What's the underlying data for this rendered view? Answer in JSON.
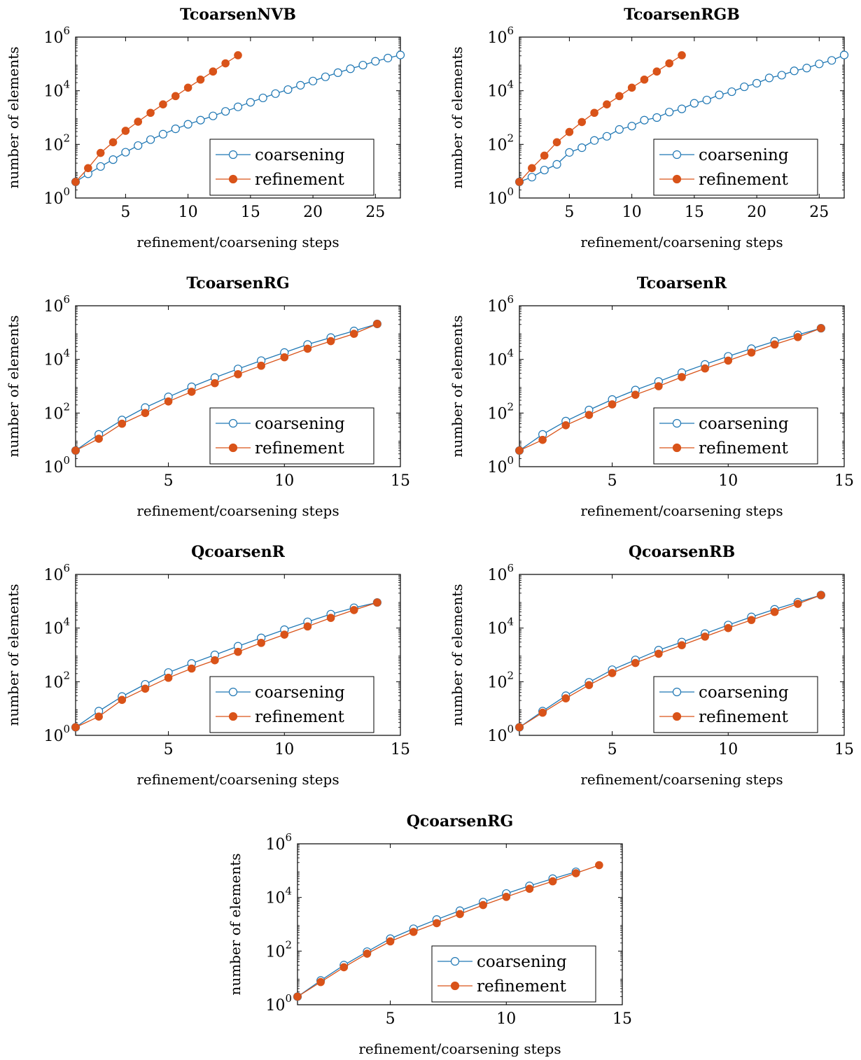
{
  "colors": {
    "coarsening": "#1f77b4",
    "refinement": "#d95319"
  },
  "chart_data": [
    {
      "type": "line",
      "title": "TcoarsenNVB",
      "xlabel": "refinement/coarsening steps",
      "ylabel": "number of elements",
      "y_scale": "log",
      "xlim": [
        1,
        27
      ],
      "ylim_exp": [
        0,
        6
      ],
      "xticks": [
        5,
        10,
        15,
        20,
        25
      ],
      "yticks": [
        {
          "base": "10",
          "exp": "0"
        },
        {
          "base": "10",
          "exp": "2"
        },
        {
          "base": "10",
          "exp": "4"
        },
        {
          "base": "10",
          "exp": "6"
        }
      ],
      "legend": "bottom-right",
      "series": [
        {
          "name": "coarsening",
          "marker": "open-circle",
          "x": [
            1,
            2,
            3,
            4,
            5,
            6,
            7,
            8,
            9,
            10,
            11,
            12,
            13,
            14,
            15,
            16,
            17,
            18,
            19,
            20,
            21,
            22,
            23,
            24,
            25,
            26,
            27
          ],
          "y": [
            4,
            8,
            15,
            27,
            51,
            90,
            150,
            240,
            380,
            560,
            800,
            1150,
            1700,
            2500,
            3700,
            5400,
            7800,
            11000,
            16000,
            23000,
            33000,
            47000,
            66000,
            90000,
            125000,
            165000,
            215000
          ]
        },
        {
          "name": "refinement",
          "marker": "filled-circle",
          "x": [
            1,
            2,
            3,
            4,
            5,
            6,
            7,
            8,
            9,
            10,
            11,
            12,
            13,
            14
          ],
          "y": [
            4,
            13,
            48,
            120,
            320,
            700,
            1500,
            3100,
            6300,
            13000,
            26000,
            52000,
            105000,
            210000
          ]
        }
      ]
    },
    {
      "type": "line",
      "title": "TcoarsenRGB",
      "xlabel": "refinement/coarsening steps",
      "ylabel": "number of elements",
      "y_scale": "log",
      "xlim": [
        1,
        27
      ],
      "ylim_exp": [
        0,
        6
      ],
      "xticks": [
        5,
        10,
        15,
        20,
        25
      ],
      "yticks": [
        {
          "base": "10",
          "exp": "0"
        },
        {
          "base": "10",
          "exp": "2"
        },
        {
          "base": "10",
          "exp": "4"
        },
        {
          "base": "10",
          "exp": "6"
        }
      ],
      "legend": "bottom-right",
      "series": [
        {
          "name": "coarsening",
          "marker": "open-circle",
          "x": [
            1,
            2,
            3,
            4,
            5,
            6,
            7,
            8,
            9,
            10,
            11,
            12,
            13,
            14,
            15,
            16,
            17,
            18,
            19,
            20,
            21,
            22,
            23,
            24,
            25,
            26,
            27
          ],
          "y": [
            4,
            6,
            11,
            18,
            50,
            75,
            140,
            200,
            360,
            480,
            800,
            1000,
            1600,
            2100,
            3400,
            4500,
            7000,
            9200,
            14000,
            19000,
            30000,
            38000,
            55000,
            70000,
            100000,
            135000,
            215000
          ]
        },
        {
          "name": "refinement",
          "marker": "filled-circle",
          "x": [
            1,
            2,
            3,
            4,
            5,
            6,
            7,
            8,
            9,
            10,
            11,
            12,
            13,
            14
          ],
          "y": [
            4,
            13,
            38,
            120,
            290,
            680,
            1500,
            3100,
            6300,
            13000,
            26000,
            52000,
            105000,
            210000
          ]
        }
      ]
    },
    {
      "type": "line",
      "title": "TcoarsenRG",
      "xlabel": "refinement/coarsening steps",
      "ylabel": "number of elements",
      "y_scale": "log",
      "xlim": [
        1,
        15
      ],
      "ylim_exp": [
        0,
        6
      ],
      "xticks": [
        5,
        10,
        15
      ],
      "yticks": [
        {
          "base": "10",
          "exp": "0"
        },
        {
          "base": "10",
          "exp": "2"
        },
        {
          "base": "10",
          "exp": "4"
        },
        {
          "base": "10",
          "exp": "6"
        }
      ],
      "legend": "bottom-right",
      "series": [
        {
          "name": "coarsening",
          "marker": "open-circle",
          "x": [
            1,
            2,
            3,
            4,
            5,
            6,
            7,
            8,
            9,
            10,
            11,
            12,
            13,
            14
          ],
          "y": [
            4,
            16,
            55,
            160,
            400,
            950,
            2100,
            4400,
            9000,
            18000,
            36000,
            65000,
            115000,
            210000
          ]
        },
        {
          "name": "refinement",
          "marker": "filled-circle",
          "x": [
            1,
            2,
            3,
            4,
            5,
            6,
            7,
            8,
            9,
            10,
            11,
            12,
            13,
            14
          ],
          "y": [
            4,
            11,
            40,
            100,
            270,
            620,
            1300,
            2800,
            5800,
            12000,
            25000,
            48000,
            90000,
            210000
          ]
        }
      ]
    },
    {
      "type": "line",
      "title": "TcoarsenR",
      "xlabel": "refinement/coarsening steps",
      "ylabel": "number of elements",
      "y_scale": "log",
      "xlim": [
        1,
        15
      ],
      "ylim_exp": [
        0,
        6
      ],
      "xticks": [
        5,
        10,
        15
      ],
      "yticks": [
        {
          "base": "10",
          "exp": "0"
        },
        {
          "base": "10",
          "exp": "2"
        },
        {
          "base": "10",
          "exp": "4"
        },
        {
          "base": "10",
          "exp": "6"
        }
      ],
      "legend": "bottom-right",
      "series": [
        {
          "name": "coarsening",
          "marker": "open-circle",
          "x": [
            1,
            2,
            3,
            4,
            5,
            6,
            7,
            8,
            9,
            10,
            11,
            12,
            13,
            14
          ],
          "y": [
            4,
            16,
            50,
            130,
            320,
            720,
            1500,
            3200,
            6500,
            13000,
            25000,
            47000,
            82000,
            145000
          ]
        },
        {
          "name": "refinement",
          "marker": "filled-circle",
          "x": [
            1,
            2,
            3,
            4,
            5,
            6,
            7,
            8,
            9,
            10,
            11,
            12,
            13,
            14
          ],
          "y": [
            4,
            10,
            35,
            85,
            210,
            480,
            1000,
            2200,
            4600,
            9000,
            18000,
            36000,
            68000,
            145000
          ]
        }
      ]
    },
    {
      "type": "line",
      "title": "QcoarsenR",
      "xlabel": "refinement/coarsening steps",
      "ylabel": "number of elements",
      "y_scale": "log",
      "xlim": [
        1,
        15
      ],
      "ylim_exp": [
        0,
        6
      ],
      "xticks": [
        5,
        10,
        15
      ],
      "yticks": [
        {
          "base": "10",
          "exp": "0"
        },
        {
          "base": "10",
          "exp": "2"
        },
        {
          "base": "10",
          "exp": "4"
        },
        {
          "base": "10",
          "exp": "6"
        }
      ],
      "legend": "bottom-right",
      "series": [
        {
          "name": "coarsening",
          "marker": "open-circle",
          "x": [
            1,
            2,
            3,
            4,
            5,
            6,
            7,
            8,
            9,
            10,
            11,
            12,
            13,
            14
          ],
          "y": [
            2,
            8,
            28,
            80,
            220,
            480,
            1000,
            2100,
            4300,
            8700,
            17000,
            33000,
            57000,
            90000
          ]
        },
        {
          "name": "refinement",
          "marker": "filled-circle",
          "x": [
            1,
            2,
            3,
            4,
            5,
            6,
            7,
            8,
            9,
            10,
            11,
            12,
            13,
            14
          ],
          "y": [
            2,
            5,
            21,
            55,
            140,
            310,
            630,
            1300,
            2800,
            5700,
            11500,
            24000,
            47000,
            90000
          ]
        }
      ]
    },
    {
      "type": "line",
      "title": "QcoarsenRB",
      "xlabel": "refinement/coarsening steps",
      "ylabel": "number of elements",
      "y_scale": "log",
      "xlim": [
        1,
        15
      ],
      "ylim_exp": [
        0,
        6
      ],
      "xticks": [
        5,
        10,
        15
      ],
      "yticks": [
        {
          "base": "10",
          "exp": "0"
        },
        {
          "base": "10",
          "exp": "2"
        },
        {
          "base": "10",
          "exp": "4"
        },
        {
          "base": "10",
          "exp": "6"
        }
      ],
      "legend": "bottom-right",
      "series": [
        {
          "name": "coarsening",
          "marker": "open-circle",
          "x": [
            1,
            2,
            3,
            4,
            5,
            6,
            7,
            8,
            9,
            10,
            11,
            12,
            13,
            14
          ],
          "y": [
            2,
            8,
            30,
            95,
            280,
            650,
            1500,
            3000,
            6200,
            13000,
            26000,
            50000,
            92000,
            170000
          ]
        },
        {
          "name": "refinement",
          "marker": "filled-circle",
          "x": [
            1,
            2,
            3,
            4,
            5,
            6,
            7,
            8,
            9,
            10,
            11,
            12,
            13,
            14
          ],
          "y": [
            2,
            7,
            24,
            75,
            210,
            500,
            1100,
            2300,
            4800,
            10000,
            20000,
            40000,
            80000,
            170000
          ]
        }
      ]
    },
    {
      "type": "line",
      "title": "QcoarsenRG",
      "xlabel": "refinement/coarsening steps",
      "ylabel": "number of elements",
      "y_scale": "log",
      "xlim": [
        1,
        15
      ],
      "ylim_exp": [
        0,
        6
      ],
      "xticks": [
        5,
        10,
        15
      ],
      "yticks": [
        {
          "base": "10",
          "exp": "0"
        },
        {
          "base": "10",
          "exp": "2"
        },
        {
          "base": "10",
          "exp": "4"
        },
        {
          "base": "10",
          "exp": "6"
        }
      ],
      "legend": "bottom-right",
      "series": [
        {
          "name": "coarsening",
          "marker": "open-circle",
          "x": [
            1,
            2,
            3,
            4,
            5,
            6,
            7,
            8,
            9,
            10,
            11,
            12,
            13
          ],
          "y": [
            2,
            8,
            30,
            95,
            290,
            680,
            1500,
            3200,
            6700,
            14000,
            27000,
            50000,
            90000
          ]
        },
        {
          "name": "refinement",
          "marker": "filled-circle",
          "x": [
            1,
            2,
            3,
            4,
            5,
            6,
            7,
            8,
            9,
            10,
            11,
            12,
            13,
            14
          ],
          "y": [
            2,
            7,
            25,
            80,
            230,
            520,
            1100,
            2400,
            5200,
            10500,
            21000,
            40000,
            80000,
            160000
          ]
        }
      ]
    }
  ]
}
